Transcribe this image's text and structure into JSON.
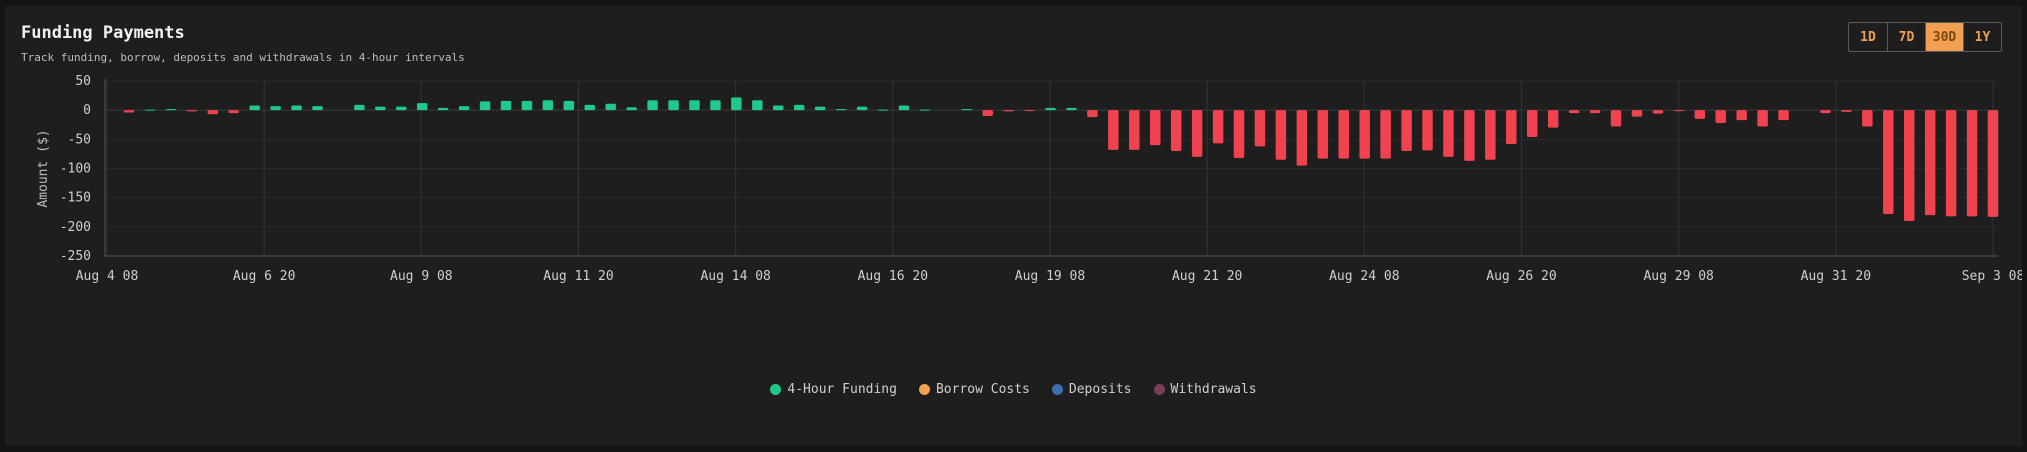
{
  "header": {
    "title": "Funding Payments",
    "subtitle": "Track funding, borrow, deposits and withdrawals in 4-hour intervals"
  },
  "range": {
    "options": [
      "1D",
      "7D",
      "30D",
      "1Y"
    ],
    "selected": "30D"
  },
  "colors": {
    "positive": "#1ec98a",
    "negative": "#f0434f",
    "borrow": "#f0a050",
    "deposits": "#3b6fb0",
    "withdrawals": "#7a3f5a"
  },
  "legend": [
    {
      "label": "4-Hour Funding",
      "color": "#1ec98a"
    },
    {
      "label": "Borrow Costs",
      "color": "#f0a050"
    },
    {
      "label": "Deposits",
      "color": "#3b6fb0"
    },
    {
      "label": "Withdrawals",
      "color": "#7a3f5a"
    }
  ],
  "chart_data": {
    "type": "bar",
    "title": "Funding Payments",
    "ylabel": "Amount ($)",
    "xlabel": "",
    "ylim": [
      -250,
      50
    ],
    "yticks": [
      50,
      0,
      -50,
      -100,
      -150,
      -200,
      -250
    ],
    "xticks": [
      "Aug 4 08",
      "Aug 6 20",
      "Aug 9 08",
      "Aug 11 20",
      "Aug 14 08",
      "Aug 16 20",
      "Aug 19 08",
      "Aug 21 20",
      "Aug 24 08",
      "Aug 26 20",
      "Aug 29 08",
      "Aug 31 20",
      "Sep 3 08"
    ],
    "grid": true,
    "legend_position": "bottom",
    "series": [
      {
        "name": "4-Hour Funding",
        "values": [
          -4,
          1,
          2,
          -2,
          -7,
          -5,
          8,
          7,
          8,
          7,
          null,
          9,
          6,
          6,
          12,
          4,
          7,
          15,
          16,
          16,
          17,
          16,
          9,
          11,
          5,
          17,
          17,
          17,
          17,
          22,
          17,
          8,
          9,
          6,
          2,
          6,
          1,
          8,
          1,
          null,
          2,
          -10,
          -2,
          -1,
          4,
          4,
          -12,
          -68,
          -68,
          -60,
          -70,
          -80,
          -57,
          -82,
          -62,
          -85,
          -95,
          -83,
          -83,
          -83,
          -83,
          -70,
          -69,
          -80,
          -87,
          -85,
          -58,
          -46,
          -30,
          -5,
          -5,
          -28,
          -11,
          -6,
          -1,
          -15,
          -22,
          -17,
          -28,
          -17,
          null,
          -5,
          -3,
          -28,
          -178,
          -190,
          -180,
          -182,
          -182,
          -183
        ]
      }
    ]
  }
}
